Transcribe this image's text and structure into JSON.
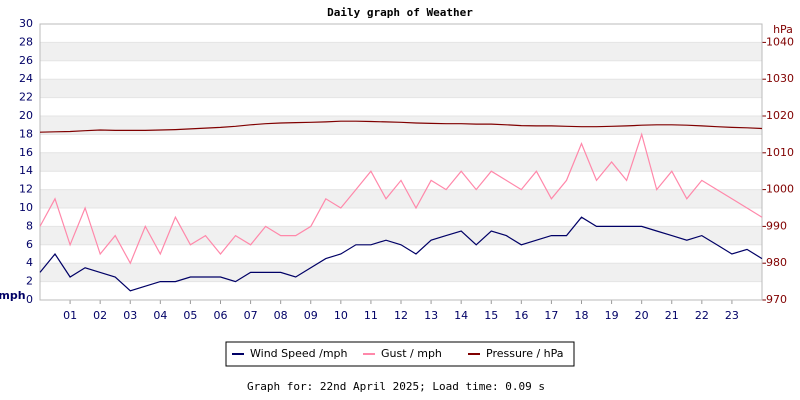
{
  "chart_data": {
    "type": "line",
    "title": "Daily graph of Weather",
    "y_label": "mph",
    "y2_label": "hPa",
    "x": [
      0,
      0.5,
      1,
      1.5,
      2,
      2.5,
      3,
      3.5,
      4,
      4.5,
      5,
      5.5,
      6,
      6.5,
      7,
      7.5,
      8,
      8.5,
      9,
      9.5,
      10,
      10.5,
      11,
      11.5,
      12,
      12.5,
      13,
      13.5,
      14,
      14.5,
      15,
      15.5,
      16,
      16.5,
      17,
      17.5,
      18,
      18.5,
      19,
      19.5,
      20,
      20.5,
      21,
      21.5,
      22,
      22.5,
      23,
      23.5,
      24
    ],
    "xlim": [
      0,
      24
    ],
    "xticks": [
      {
        "value": 1,
        "label": "01"
      },
      {
        "value": 2,
        "label": "02"
      },
      {
        "value": 3,
        "label": "03"
      },
      {
        "value": 4,
        "label": "04"
      },
      {
        "value": 5,
        "label": "05"
      },
      {
        "value": 6,
        "label": "06"
      },
      {
        "value": 7,
        "label": "07"
      },
      {
        "value": 8,
        "label": "08"
      },
      {
        "value": 9,
        "label": "09"
      },
      {
        "value": 10,
        "label": "10"
      },
      {
        "value": 11,
        "label": "11"
      },
      {
        "value": 12,
        "label": "12"
      },
      {
        "value": 13,
        "label": "13"
      },
      {
        "value": 14,
        "label": "14"
      },
      {
        "value": 15,
        "label": "15"
      },
      {
        "value": 16,
        "label": "16"
      },
      {
        "value": 17,
        "label": "17"
      },
      {
        "value": 18,
        "label": "18"
      },
      {
        "value": 19,
        "label": "19"
      },
      {
        "value": 20,
        "label": "20"
      },
      {
        "value": 21,
        "label": "21"
      },
      {
        "value": 22,
        "label": "22"
      },
      {
        "value": 23,
        "label": "23"
      }
    ],
    "ylim": [
      0,
      30
    ],
    "yticks": [
      0,
      2,
      4,
      6,
      8,
      10,
      12,
      14,
      16,
      18,
      20,
      22,
      24,
      26,
      28,
      30
    ],
    "y2lim": [
      970,
      1045
    ],
    "y2ticks": [
      970,
      980,
      990,
      1000,
      1010,
      1020,
      1030,
      1040
    ],
    "series": [
      {
        "name": "Gust / mph",
        "color": "#ff88aa",
        "values": [
          8,
          11,
          6,
          10,
          5,
          7,
          4,
          8,
          5,
          9,
          6,
          7,
          5,
          7,
          6,
          8,
          7,
          7,
          8,
          11,
          10,
          12,
          14,
          11,
          13,
          10,
          13,
          12,
          14,
          12,
          14,
          13,
          12,
          14,
          11,
          13,
          17,
          13,
          15,
          13,
          18,
          12,
          14,
          11,
          13,
          12,
          11,
          10,
          9
        ]
      },
      {
        "name": "Wind Speed /mph",
        "color": "#000066",
        "values": [
          3,
          5,
          2.5,
          3.5,
          3,
          2.5,
          1,
          1.5,
          2,
          2,
          2.5,
          2.5,
          2.5,
          2,
          3,
          3,
          3,
          2.5,
          3.5,
          4.5,
          5,
          6,
          6,
          6.5,
          6,
          5,
          6.5,
          7,
          7.5,
          6,
          7.5,
          7,
          6,
          6.5,
          7,
          7,
          9,
          8,
          8,
          8,
          8,
          7.5,
          7,
          6.5,
          7,
          6,
          5,
          5.5,
          4.5
        ]
      },
      {
        "name": "Pressure / hPa",
        "color": "#800000",
        "axis": "y2",
        "values": [
          1015.6,
          1015.7,
          1015.8,
          1016.0,
          1016.2,
          1016.1,
          1016.1,
          1016.1,
          1016.2,
          1016.3,
          1016.5,
          1016.7,
          1016.9,
          1017.2,
          1017.6,
          1017.9,
          1018.1,
          1018.2,
          1018.3,
          1018.4,
          1018.6,
          1018.6,
          1018.5,
          1018.4,
          1018.3,
          1018.1,
          1018.0,
          1017.9,
          1017.9,
          1017.8,
          1017.8,
          1017.6,
          1017.4,
          1017.3,
          1017.3,
          1017.2,
          1017.1,
          1017.1,
          1017.2,
          1017.3,
          1017.5,
          1017.6,
          1017.6,
          1017.5,
          1017.3,
          1017.1,
          1016.9,
          1016.8,
          1016.6
        ]
      }
    ],
    "legend_order": [
      1,
      0,
      2
    ],
    "footer": "Graph for: 22nd April 2025; Load time: 0.09 s"
  }
}
